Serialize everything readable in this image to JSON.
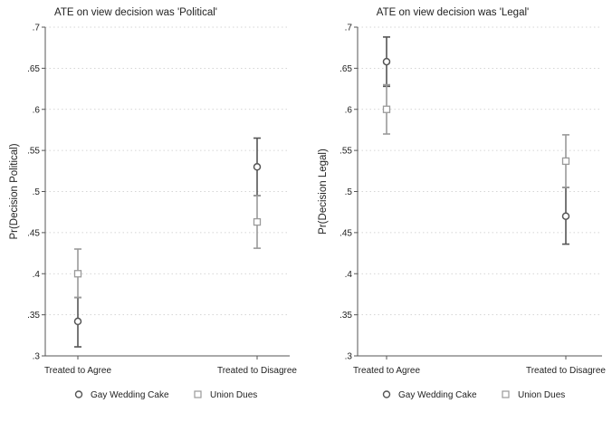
{
  "chart_data": [
    {
      "type": "scatter",
      "title": "ATE on view decision was 'Political'",
      "ylabel": "Pr(Decision Political)",
      "xlabel": "",
      "categories": [
        "Treated to Agree",
        "Treated to Disagree"
      ],
      "ylim": [
        0.3,
        0.7
      ],
      "yticks": [
        0.3,
        0.35,
        0.4,
        0.45,
        0.5,
        0.55,
        0.6,
        0.65,
        0.7
      ],
      "ytick_labels": [
        ".3",
        ".35",
        ".4",
        ".45",
        ".5",
        ".55",
        ".6",
        ".65",
        ".7"
      ],
      "grid": "horizontal dotted",
      "legend_position": "bottom",
      "series": [
        {
          "name": "Gay Wedding Cake",
          "marker": "circle",
          "color": "#555555",
          "points": [
            {
              "category": "Treated to Agree",
              "estimate": 0.342,
              "ci_low": 0.311,
              "ci_high": 0.371
            },
            {
              "category": "Treated to Disagree",
              "estimate": 0.53,
              "ci_low": 0.495,
              "ci_high": 0.565
            }
          ]
        },
        {
          "name": "Union Dues",
          "marker": "square",
          "color": "#9a9a9a",
          "points": [
            {
              "category": "Treated to Agree",
              "estimate": 0.4,
              "ci_low": 0.371,
              "ci_high": 0.43
            },
            {
              "category": "Treated to Disagree",
              "estimate": 0.463,
              "ci_low": 0.431,
              "ci_high": 0.495
            }
          ]
        }
      ]
    },
    {
      "type": "scatter",
      "title": "ATE on view decision was 'Legal'",
      "ylabel": "Pr(Decision Legal)",
      "xlabel": "",
      "categories": [
        "Treated to Agree",
        "Treated to Disagree"
      ],
      "ylim": [
        0.3,
        0.7
      ],
      "yticks": [
        0.3,
        0.35,
        0.4,
        0.45,
        0.5,
        0.55,
        0.6,
        0.65,
        0.7
      ],
      "ytick_labels": [
        ".3",
        ".35",
        ".4",
        ".45",
        ".5",
        ".55",
        ".6",
        ".65",
        ".7"
      ],
      "grid": "horizontal dotted",
      "legend_position": "bottom",
      "series": [
        {
          "name": "Gay Wedding Cake",
          "marker": "circle",
          "color": "#555555",
          "points": [
            {
              "category": "Treated to Agree",
              "estimate": 0.658,
              "ci_low": 0.628,
              "ci_high": 0.688
            },
            {
              "category": "Treated to Disagree",
              "estimate": 0.47,
              "ci_low": 0.436,
              "ci_high": 0.505
            }
          ]
        },
        {
          "name": "Union Dues",
          "marker": "square",
          "color": "#9a9a9a",
          "points": [
            {
              "category": "Treated to Agree",
              "estimate": 0.6,
              "ci_low": 0.57,
              "ci_high": 0.63
            },
            {
              "category": "Treated to Disagree",
              "estimate": 0.537,
              "ci_low": 0.505,
              "ci_high": 0.569
            }
          ]
        }
      ]
    }
  ]
}
